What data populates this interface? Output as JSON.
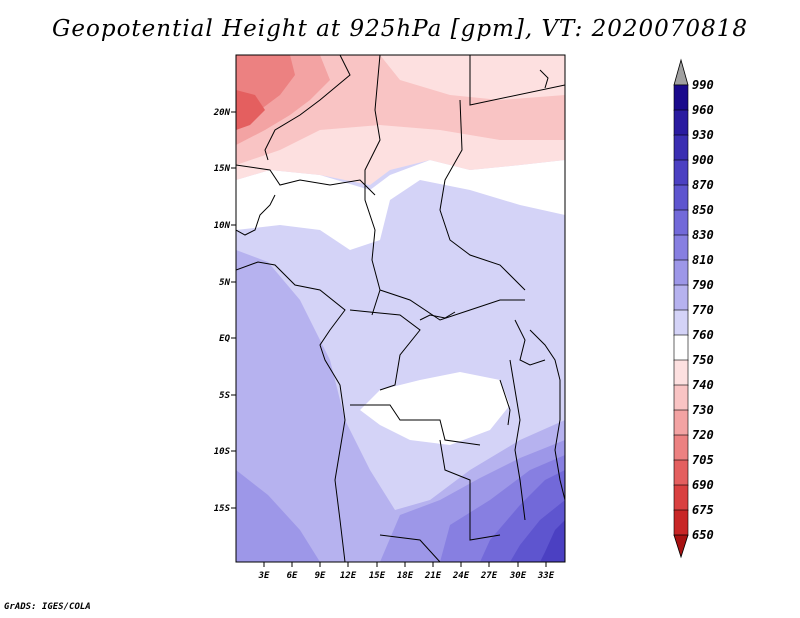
{
  "title": "Geopotential Height at 925hPa [gpm], VT: 2020070818",
  "credit": "GrADS: IGES/COLA",
  "map": {
    "lon_labels": [
      "3E",
      "6E",
      "9E",
      "12E",
      "15E",
      "18E",
      "21E",
      "24E",
      "27E",
      "30E",
      "33E"
    ],
    "lat_labels": [
      "20N",
      "15N",
      "10N",
      "5N",
      "EQ",
      "5S",
      "10S",
      "15S"
    ]
  },
  "colorbar": {
    "levels": [
      "990",
      "960",
      "930",
      "900",
      "870",
      "850",
      "830",
      "810",
      "790",
      "770",
      "760",
      "750",
      "740",
      "730",
      "720",
      "705",
      "690",
      "675",
      "650"
    ],
    "colors": [
      "#1a0a8c",
      "#2a1ba0",
      "#3a2eb2",
      "#4b40c2",
      "#5e55cf",
      "#7269d9",
      "#877fe1",
      "#9d97e8",
      "#b6b2ef",
      "#d4d3f7",
      "#ffffff",
      "#fde0e0",
      "#f9c4c4",
      "#f3a3a3",
      "#ec8181",
      "#e45f5f",
      "#d94040",
      "#c82626",
      "#a81212"
    ]
  },
  "chart_data": {
    "type": "heatmap",
    "title": "Geopotential Height at 925hPa [gpm], VT: 2020070818",
    "variable": "Geopotential Height at 925hPa",
    "units": "gpm",
    "valid_time": "2020070818",
    "lon_range": [
      0,
      35
    ],
    "lat_range": [
      -20,
      25
    ],
    "x_ticks": [
      "3E",
      "6E",
      "9E",
      "12E",
      "15E",
      "18E",
      "21E",
      "24E",
      "27E",
      "30E",
      "33E"
    ],
    "y_ticks": [
      "20N",
      "15N",
      "10N",
      "5N",
      "EQ",
      "5S",
      "10S",
      "15S"
    ],
    "colorbar_levels": [
      990,
      960,
      930,
      900,
      870,
      850,
      830,
      810,
      790,
      770,
      760,
      750,
      740,
      730,
      720,
      705,
      690,
      675,
      650
    ]
  }
}
